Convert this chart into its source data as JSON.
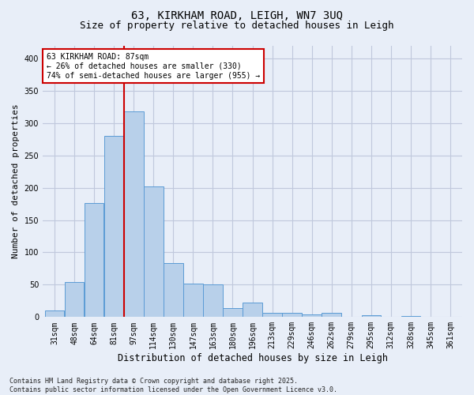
{
  "title": "63, KIRKHAM ROAD, LEIGH, WN7 3UQ",
  "subtitle": "Size of property relative to detached houses in Leigh",
  "xlabel": "Distribution of detached houses by size in Leigh",
  "ylabel": "Number of detached properties",
  "categories": [
    "31sqm",
    "48sqm",
    "64sqm",
    "81sqm",
    "97sqm",
    "114sqm",
    "130sqm",
    "147sqm",
    "163sqm",
    "180sqm",
    "196sqm",
    "213sqm",
    "229sqm",
    "246sqm",
    "262sqm",
    "279sqm",
    "295sqm",
    "312sqm",
    "328sqm",
    "345sqm",
    "361sqm"
  ],
  "values": [
    10,
    54,
    176,
    280,
    318,
    202,
    84,
    52,
    50,
    14,
    22,
    6,
    6,
    4,
    6,
    0,
    3,
    0,
    2,
    0,
    0
  ],
  "bar_color": "#b8d0ea",
  "bar_edge_color": "#5b9bd5",
  "vline_x": 3.5,
  "vline_color": "#cc0000",
  "annotation_text": "63 KIRKHAM ROAD: 87sqm\n← 26% of detached houses are smaller (330)\n74% of semi-detached houses are larger (955) →",
  "annotation_box_color": "#ffffff",
  "annotation_box_edge_color": "#cc0000",
  "ylim": [
    0,
    420
  ],
  "yticks": [
    0,
    50,
    100,
    150,
    200,
    250,
    300,
    350,
    400
  ],
  "grid_color": "#c0c8dc",
  "background_color": "#e8eef8",
  "footer_text": "Contains HM Land Registry data © Crown copyright and database right 2025.\nContains public sector information licensed under the Open Government Licence v3.0.",
  "title_fontsize": 10,
  "subtitle_fontsize": 9,
  "tick_fontsize": 7,
  "ylabel_fontsize": 8,
  "xlabel_fontsize": 8.5
}
